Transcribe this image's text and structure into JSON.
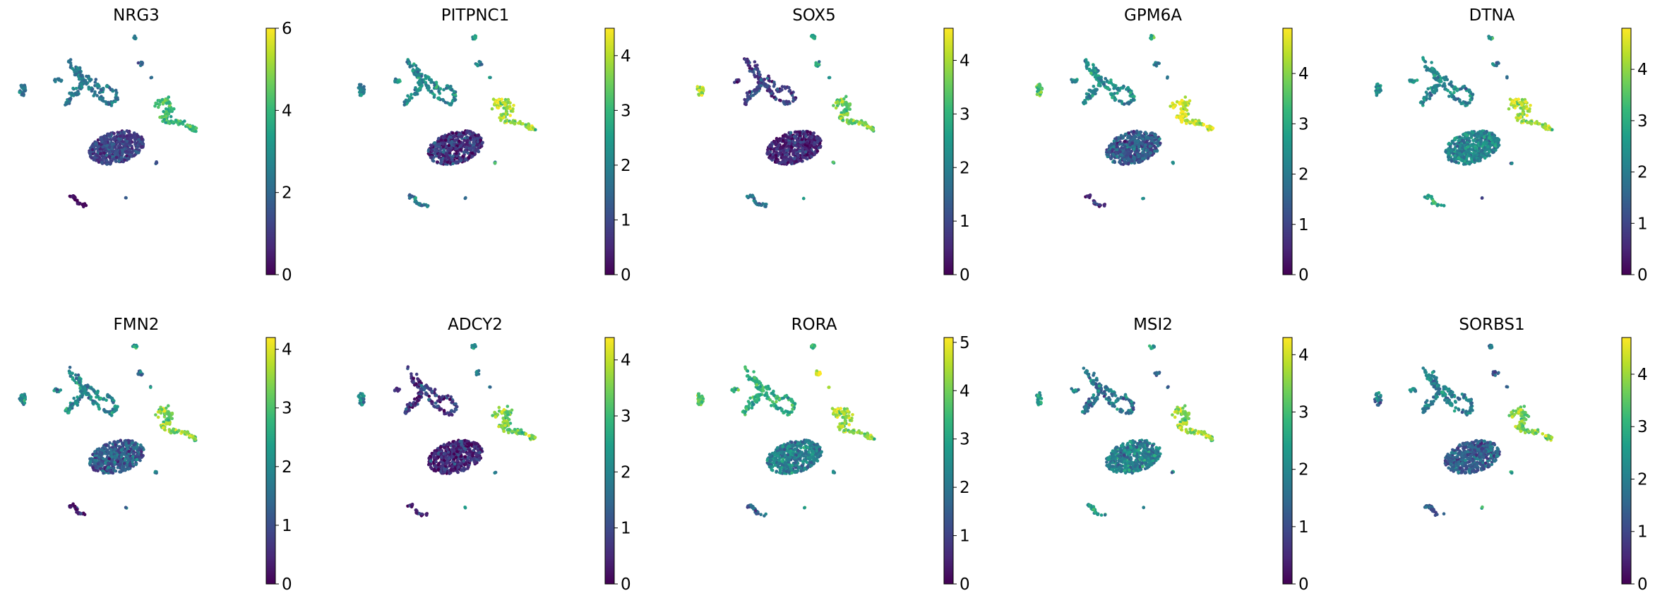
{
  "chart_data": [
    {
      "type": "scatter",
      "title": "NRG3",
      "colorbar": {
        "min": 0,
        "max": 6,
        "ticks": [
          0,
          2,
          4,
          6
        ]
      },
      "cluster_means": {
        "main": 1.2,
        "left": 2.3,
        "upper": 2.4,
        "upper_right": 1.6,
        "right": 4.0,
        "bottom": 0.4,
        "small": 1.8,
        "tiny": 2.5
      }
    },
    {
      "type": "scatter",
      "title": "PITPNC1",
      "colorbar": {
        "min": 0,
        "max": 4.5,
        "ticks": [
          0,
          1,
          2,
          3,
          4
        ]
      },
      "cluster_means": {
        "main": 0.7,
        "left": 2.0,
        "upper": 2.1,
        "upper_right": 2.0,
        "right": 3.8,
        "bottom": 1.8,
        "small": 2.2,
        "tiny": 2.6
      }
    },
    {
      "type": "scatter",
      "title": "SOX5",
      "colorbar": {
        "min": 0,
        "max": 4.6,
        "ticks": [
          0,
          1,
          2,
          3,
          4
        ]
      },
      "cluster_means": {
        "main": 0.6,
        "left": 3.9,
        "upper": 0.8,
        "upper_right": 2.4,
        "right": 3.6,
        "bottom": 1.8,
        "small": 2.6,
        "tiny": 3.0
      }
    },
    {
      "type": "scatter",
      "title": "GPM6A",
      "colorbar": {
        "min": 0,
        "max": 4.9,
        "ticks": [
          0,
          1,
          2,
          3,
          4
        ]
      },
      "cluster_means": {
        "main": 1.4,
        "left": 3.5,
        "upper": 2.4,
        "upper_right": 2.2,
        "right": 4.5,
        "bottom": 0.6,
        "small": 2.6,
        "tiny": 3.3
      }
    },
    {
      "type": "scatter",
      "title": "DTNA",
      "colorbar": {
        "min": 0,
        "max": 4.8,
        "ticks": [
          0,
          1,
          2,
          3,
          4
        ]
      },
      "cluster_means": {
        "main": 2.2,
        "left": 2.4,
        "upper": 2.2,
        "upper_right": 1.8,
        "right": 4.1,
        "bottom": 3.0,
        "small": 1.4,
        "tiny": 2.4
      }
    },
    {
      "type": "scatter",
      "title": "FMN2",
      "colorbar": {
        "min": 0,
        "max": 4.2,
        "ticks": [
          0,
          1,
          2,
          3,
          4
        ]
      },
      "cluster_means": {
        "main": 1.3,
        "left": 1.9,
        "upper": 1.9,
        "upper_right": 1.6,
        "right": 3.4,
        "bottom": 0.3,
        "small": 1.9,
        "tiny": 2.1
      }
    },
    {
      "type": "scatter",
      "title": "ADCY2",
      "colorbar": {
        "min": 0,
        "max": 4.4,
        "ticks": [
          0,
          1,
          2,
          3,
          4
        ]
      },
      "cluster_means": {
        "main": 0.5,
        "left": 2.0,
        "upper": 0.7,
        "upper_right": 1.6,
        "right": 3.4,
        "bottom": 0.4,
        "small": 2.2,
        "tiny": 2.4
      }
    },
    {
      "type": "scatter",
      "title": "RORA",
      "colorbar": {
        "min": 0,
        "max": 5.1,
        "ticks": [
          0,
          1,
          2,
          3,
          4,
          5
        ]
      },
      "cluster_means": {
        "main": 2.2,
        "left": 3.8,
        "upper": 3.2,
        "upper_right": 4.8,
        "right": 4.2,
        "bottom": 1.6,
        "small": 3.0,
        "tiny": 3.3
      }
    },
    {
      "type": "scatter",
      "title": "MSI2",
      "colorbar": {
        "min": 0,
        "max": 4.3,
        "ticks": [
          0,
          1,
          2,
          3,
          4
        ]
      },
      "cluster_means": {
        "main": 1.9,
        "left": 2.4,
        "upper": 1.6,
        "upper_right": 1.4,
        "right": 3.6,
        "bottom": 2.3,
        "small": 2.0,
        "tiny": 2.3
      }
    },
    {
      "type": "scatter",
      "title": "SORBS1",
      "colorbar": {
        "min": 0,
        "max": 4.7,
        "ticks": [
          0,
          1,
          2,
          3,
          4
        ]
      },
      "cluster_means": {
        "main": 1.4,
        "left": 1.8,
        "upper": 2.0,
        "upper_right": 1.2,
        "right": 3.7,
        "bottom": 1.6,
        "small": 2.8,
        "tiny": 2.2
      }
    }
  ],
  "colormap": "viridis",
  "colormap_stops": [
    "#440154",
    "#482878",
    "#3e4989",
    "#31688e",
    "#26828e",
    "#1f9e89",
    "#35b779",
    "#6ece58",
    "#b5de2b",
    "#fde725"
  ]
}
